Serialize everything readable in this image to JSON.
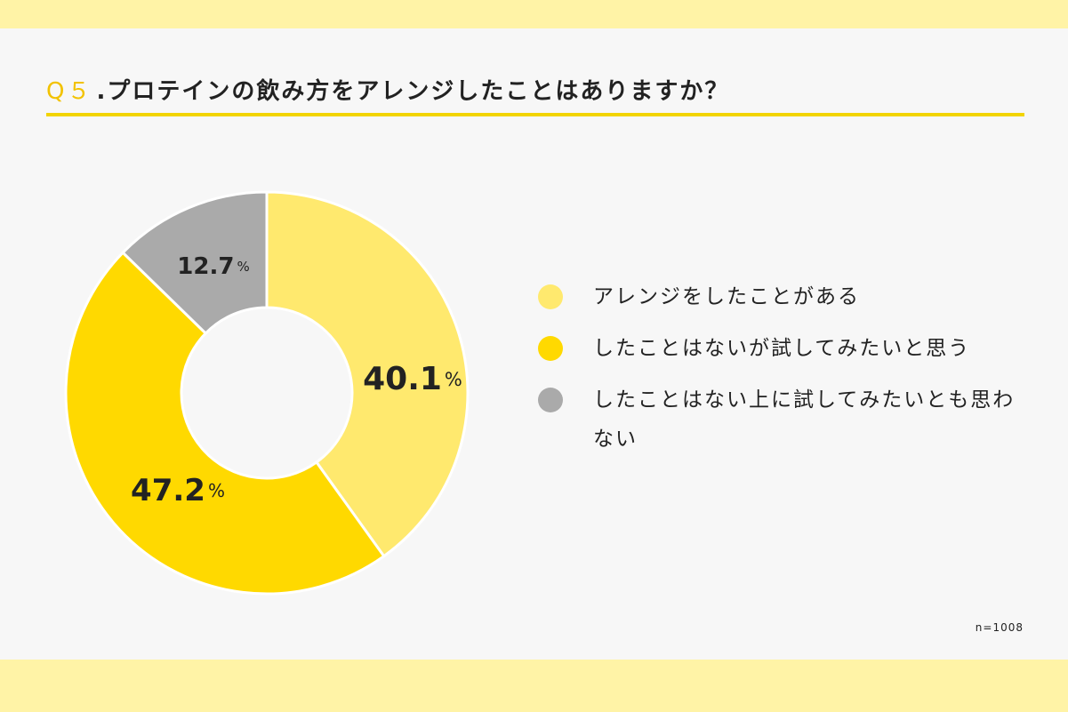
{
  "header": {
    "question_number": "Q５",
    "question_text": ".プロテインの飲み方をアレンジしたことはありますか？"
  },
  "colors": {
    "band": "#fff3a6",
    "rule": "#f2d400",
    "question_number": "#f2c200"
  },
  "note": {
    "sample_size": "n=1008"
  },
  "chart_data": {
    "type": "pie",
    "style": "donut",
    "start": "12 o'clock, clockwise",
    "unit": "%",
    "series": [
      {
        "name": "アレンジをしたことがある",
        "value": 40.1,
        "value_label": "40.1",
        "color": "#ffe96e"
      },
      {
        "name": "したことはないが試してみたいと思う",
        "value": 47.2,
        "value_label": "47.2",
        "color": "#ffd900"
      },
      {
        "name": "したことはない上に試してみたいとも思わない",
        "value": 12.7,
        "value_label": "12.7",
        "color": "#aaaaaa"
      }
    ],
    "legend": [
      "アレンジをしたことがある",
      "したことはないが試してみたいと思う",
      "したことはない上に試してみたいとも思わない"
    ],
    "legend_position": "right"
  }
}
